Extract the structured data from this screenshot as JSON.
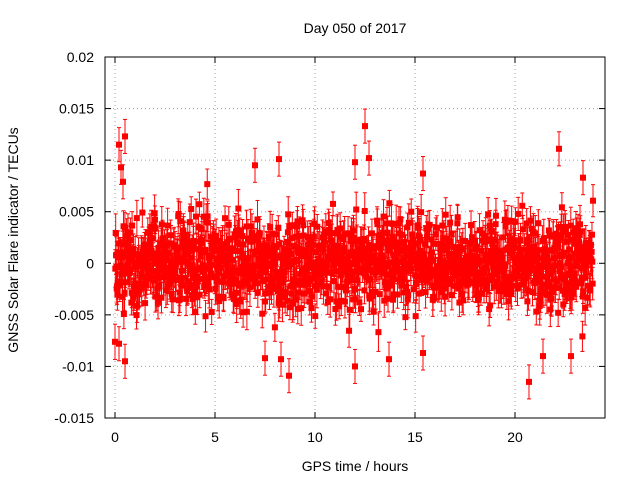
{
  "chart_data": {
    "type": "scatter",
    "title": "Day 050 of 2017",
    "xlabel": "GPS time / hours",
    "ylabel": "GNSS Solar Flare indicator / TECUs",
    "xlim": [
      -0.5,
      24.5
    ],
    "ylim": [
      -0.015,
      0.02
    ],
    "xticks": [
      0,
      5,
      10,
      15,
      20
    ],
    "xtick_labels": [
      "0",
      "5",
      "10",
      "15",
      "20"
    ],
    "yticks": [
      -0.015,
      -0.01,
      -0.005,
      0,
      0.005,
      0.01,
      0.015,
      0.02
    ],
    "ytick_labels": [
      "-0.015",
      "-0.01",
      "-0.005",
      "0",
      "0.005",
      "0.01",
      "0.015",
      "0.02"
    ],
    "grid": true,
    "series": [
      {
        "name": "GNSS Solar Flare indicator",
        "color": "#ff0000",
        "marker": "square",
        "error_bars": true,
        "typical_error": 0.0015,
        "x_range": [
          0,
          23.9
        ],
        "typical_spread": 0.0035,
        "notable_points": [
          {
            "x": 0.2,
            "y": 0.0115
          },
          {
            "x": 0.5,
            "y": 0.0123
          },
          {
            "x": 0.3,
            "y": 0.0093
          },
          {
            "x": 0.4,
            "y": 0.0079
          },
          {
            "x": 0.5,
            "y": -0.0095
          },
          {
            "x": 0.2,
            "y": -0.0078
          },
          {
            "x": 7.0,
            "y": 0.0095
          },
          {
            "x": 7.5,
            "y": -0.0092
          },
          {
            "x": 8.2,
            "y": 0.0101
          },
          {
            "x": 8.7,
            "y": -0.0109
          },
          {
            "x": 8.3,
            "y": -0.0093
          },
          {
            "x": 12.0,
            "y": 0.0098
          },
          {
            "x": 12.0,
            "y": -0.01
          },
          {
            "x": 12.5,
            "y": 0.0133
          },
          {
            "x": 12.7,
            "y": 0.0102
          },
          {
            "x": 13.7,
            "y": -0.0093
          },
          {
            "x": 15.4,
            "y": -0.0087
          },
          {
            "x": 15.4,
            "y": 0.0087
          },
          {
            "x": 20.7,
            "y": -0.0115
          },
          {
            "x": 21.4,
            "y": -0.009
          },
          {
            "x": 22.2,
            "y": 0.0111
          },
          {
            "x": 22.8,
            "y": -0.009
          },
          {
            "x": 23.4,
            "y": 0.0083
          }
        ]
      }
    ]
  }
}
